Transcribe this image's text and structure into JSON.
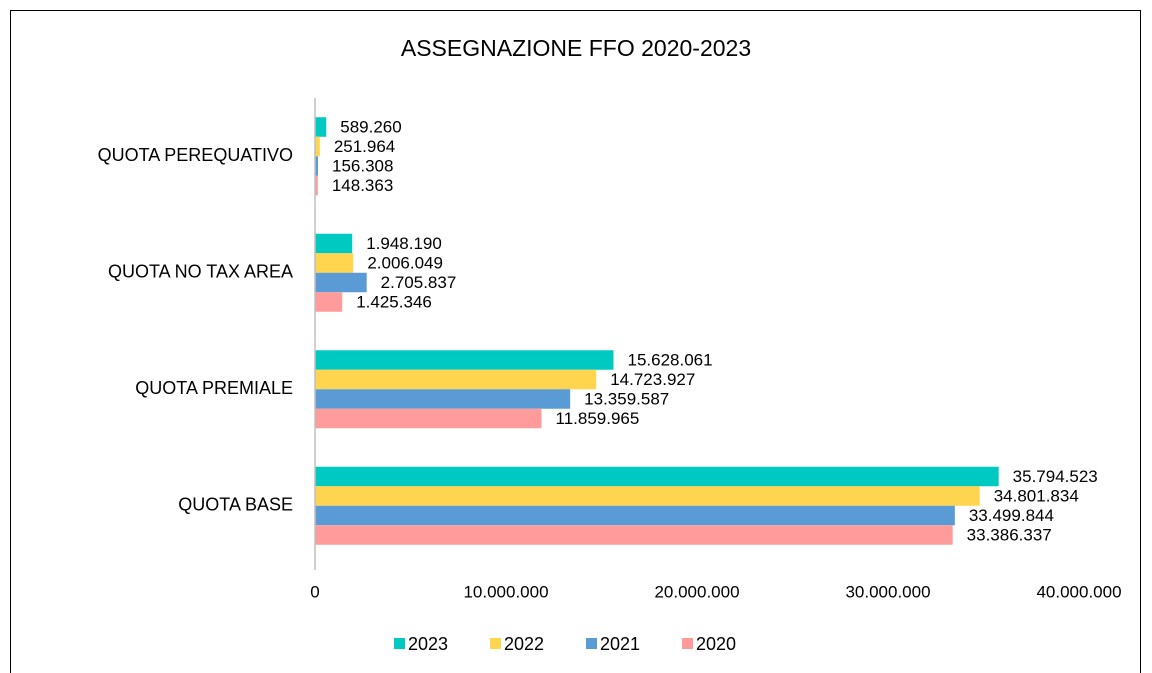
{
  "chart_data": {
    "type": "bar",
    "orientation": "horizontal",
    "title": "ASSEGNAZIONE FFO 2020-2023",
    "categories": [
      "QUOTA BASE",
      "QUOTA PREMIALE",
      "QUOTA NO TAX AREA",
      "QUOTA PEREQUATIVO"
    ],
    "series": [
      {
        "name": "2023",
        "color": "#00c9c1",
        "values": [
          35794523,
          15628061,
          1948190,
          589260
        ],
        "value_labels": [
          "35.794.523",
          "15.628.061",
          "1.948.190",
          "589.260"
        ]
      },
      {
        "name": "2022",
        "color": "#ffd54f",
        "values": [
          34801834,
          14723927,
          2006049,
          251964
        ],
        "value_labels": [
          "34.801.834",
          "14.723.927",
          "2.006.049",
          "251.964"
        ]
      },
      {
        "name": "2021",
        "color": "#5b9bd5",
        "values": [
          33499844,
          13359587,
          2705837,
          156308
        ],
        "value_labels": [
          "33.499.844",
          "13.359.587",
          "2.705.837",
          "156.308"
        ]
      },
      {
        "name": "2020",
        "color": "#ff9b9b",
        "values": [
          33386337,
          11859965,
          1425346,
          148363
        ],
        "value_labels": [
          "33.386.337",
          "11.859.965",
          "1.425.346",
          "148.363"
        ]
      }
    ],
    "xlim": [
      0,
      40000000
    ],
    "xticks": [
      0,
      {
        "value": 10000000,
        "label": "10.000.000"
      },
      {
        "value": 20000000,
        "label": "20.000.000"
      },
      {
        "value": 30000000,
        "label": "30.000.000"
      },
      {
        "value": 40000000,
        "label": "40.000.000"
      }
    ],
    "grid": false,
    "legend": "bottom"
  }
}
